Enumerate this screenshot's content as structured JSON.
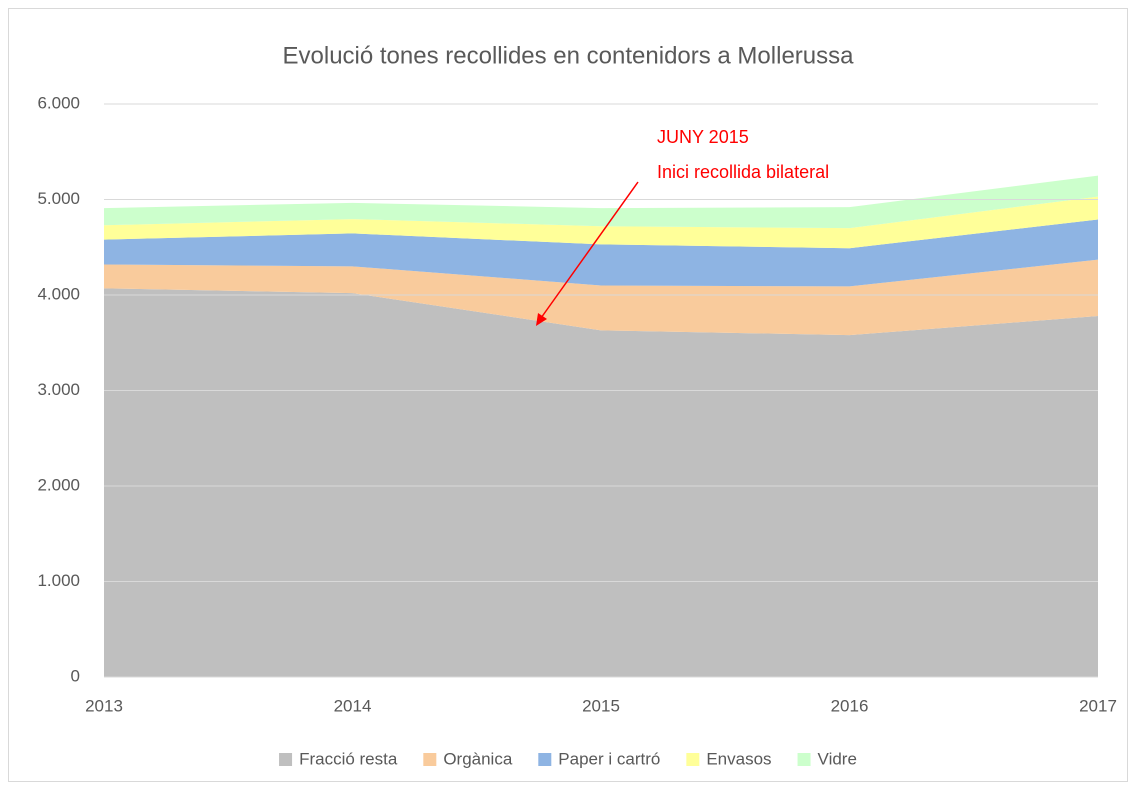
{
  "chart_data": {
    "type": "stacked_area",
    "title": "Evolució tones recollides en contenidors a Mollerussa",
    "categories": [
      "2013",
      "2014",
      "2015",
      "2016",
      "2017"
    ],
    "series": [
      {
        "name": "Fracció resta",
        "color": "#bfbfbf",
        "values": [
          4070,
          4020,
          3630,
          3580,
          3780
        ]
      },
      {
        "name": "Orgànica",
        "color": "#f9cb9c",
        "values": [
          250,
          280,
          470,
          510,
          590
        ]
      },
      {
        "name": "Paper i cartró",
        "color": "#8eb4e3",
        "values": [
          260,
          345,
          430,
          400,
          420
        ]
      },
      {
        "name": "Envasos",
        "color": "#ffff99",
        "values": [
          150,
          150,
          190,
          210,
          240
        ]
      },
      {
        "name": "Vidre",
        "color": "#ccffcc",
        "values": [
          180,
          170,
          190,
          220,
          220
        ]
      }
    ],
    "ylim": [
      0,
      6000
    ],
    "yticks": [
      0,
      {
        "value": 1000,
        "label": "1.000"
      },
      {
        "value": 2000,
        "label": "2.000"
      },
      {
        "value": 3000,
        "label": "3.000"
      },
      {
        "value": 4000,
        "label": "4.000"
      },
      {
        "value": 5000,
        "label": "5.000"
      },
      {
        "value": 6000,
        "label": "6.000"
      }
    ],
    "grid": true,
    "legend": "bottom",
    "annotation": [
      "JUNY 2015",
      "Inici recollida bilateral"
    ]
  }
}
